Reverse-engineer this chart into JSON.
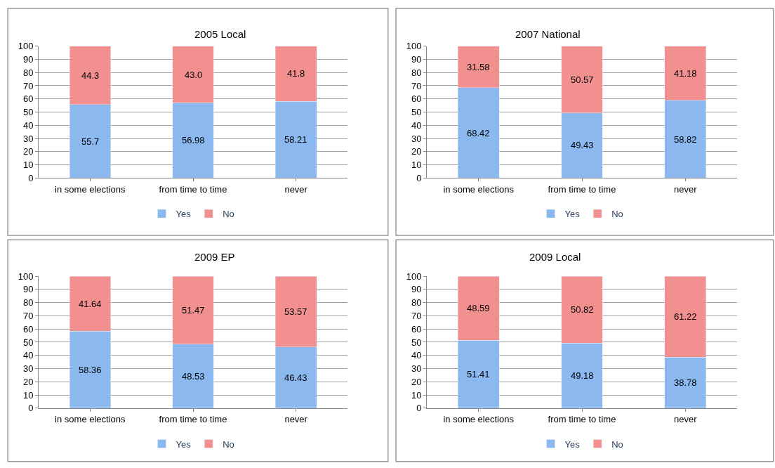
{
  "chart_data": [
    {
      "type": "bar",
      "title": "2005 Local",
      "categories": [
        "in some elections",
        "from time to time",
        "never"
      ],
      "stacked": true,
      "ylim": [
        0,
        100
      ],
      "yticks": [
        0,
        10,
        20,
        30,
        40,
        50,
        60,
        70,
        80,
        90,
        100
      ],
      "grid": "y",
      "legend": "bottom",
      "series": [
        {
          "name": "Yes",
          "color": "#8ab8ef",
          "values": [
            55.7,
            56.98,
            58.21
          ],
          "value_labels": [
            "55.7",
            "56.98",
            "58.21"
          ]
        },
        {
          "name": "No",
          "color": "#f29090",
          "values": [
            44.3,
            43.0,
            41.8
          ],
          "value_labels": [
            "44.3",
            "43.0",
            "41.8"
          ]
        }
      ]
    },
    {
      "type": "bar",
      "title": "2007 National",
      "categories": [
        "in some elections",
        "from time to time",
        "never"
      ],
      "stacked": true,
      "ylim": [
        0,
        100
      ],
      "yticks": [
        0,
        10,
        20,
        30,
        40,
        50,
        60,
        70,
        80,
        90,
        100
      ],
      "grid": "y",
      "legend": "bottom",
      "series": [
        {
          "name": "Yes",
          "color": "#8ab8ef",
          "values": [
            68.42,
            49.43,
            58.82
          ],
          "value_labels": [
            "68.42",
            "49.43",
            "58.82"
          ]
        },
        {
          "name": "No",
          "color": "#f29090",
          "values": [
            31.58,
            50.57,
            41.18
          ],
          "value_labels": [
            "31.58",
            "50.57",
            "41.18"
          ]
        }
      ]
    },
    {
      "type": "bar",
      "title": "2009 EP",
      "categories": [
        "in some elections",
        "from time to time",
        "never"
      ],
      "stacked": true,
      "ylim": [
        0,
        100
      ],
      "yticks": [
        0,
        10,
        20,
        30,
        40,
        50,
        60,
        70,
        80,
        90,
        100
      ],
      "grid": "y",
      "legend": "bottom",
      "series": [
        {
          "name": "Yes",
          "color": "#8ab8ef",
          "values": [
            58.36,
            48.53,
            46.43
          ],
          "value_labels": [
            "58.36",
            "48.53",
            "46.43"
          ]
        },
        {
          "name": "No",
          "color": "#f29090",
          "values": [
            41.64,
            51.47,
            53.57
          ],
          "value_labels": [
            "41.64",
            "51.47",
            "53.57"
          ]
        }
      ]
    },
    {
      "type": "bar",
      "title": "2009 Local",
      "categories": [
        "in some elections",
        "from time to time",
        "never"
      ],
      "stacked": true,
      "ylim": [
        0,
        100
      ],
      "yticks": [
        0,
        10,
        20,
        30,
        40,
        50,
        60,
        70,
        80,
        90,
        100
      ],
      "grid": "y",
      "legend": "bottom",
      "series": [
        {
          "name": "Yes",
          "color": "#8ab8ef",
          "values": [
            51.41,
            49.18,
            38.78
          ],
          "value_labels": [
            "51.41",
            "49.18",
            "38.78"
          ]
        },
        {
          "name": "No",
          "color": "#f29090",
          "values": [
            48.59,
            50.82,
            61.22
          ],
          "value_labels": [
            "48.59",
            "50.82",
            "61.22"
          ]
        }
      ]
    }
  ]
}
